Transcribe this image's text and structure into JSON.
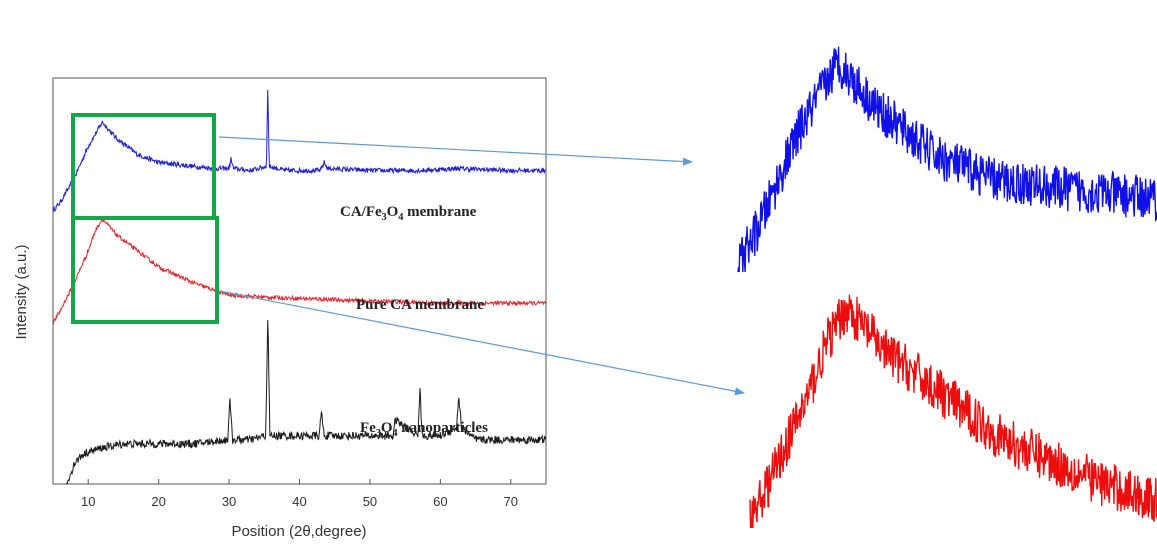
{
  "chart_data": {
    "type": "line",
    "xlabel": "Position (2θ,degree)",
    "ylabel": "Intensity (a.u.)",
    "xlim": [
      5,
      75
    ],
    "x_ticks": [
      10,
      20,
      30,
      40,
      50,
      60,
      70
    ],
    "grid": false,
    "series": [
      {
        "name": "CA/Fe3O4 membrane",
        "label_parts": [
          "CA/Fe",
          "3",
          "O",
          "4",
          " membrane"
        ],
        "color": "#1f1fd6",
        "x": [
          5,
          6,
          8,
          10,
          11,
          12,
          14,
          17,
          20,
          25,
          28,
          30,
          30.3,
          30.6,
          33,
          35.3,
          35.5,
          35.7,
          38,
          43,
          43.5,
          44,
          50,
          57,
          62.5,
          70,
          75
        ],
        "y": [
          0.68,
          0.7,
          0.76,
          0.84,
          0.87,
          0.9,
          0.86,
          0.82,
          0.8,
          0.79,
          0.785,
          0.785,
          0.81,
          0.785,
          0.78,
          0.79,
          0.99,
          0.79,
          0.78,
          0.78,
          0.8,
          0.785,
          0.78,
          0.78,
          0.785,
          0.78,
          0.78
        ]
      },
      {
        "name": "Pure CA membrane",
        "label_parts": [
          "Pure CA membrane"
        ],
        "color": "#e8242a",
        "x": [
          5,
          6,
          8,
          10,
          11,
          12,
          14,
          17,
          20,
          25,
          30,
          35,
          43,
          50,
          60,
          70,
          75
        ],
        "y": [
          0.4,
          0.43,
          0.5,
          0.58,
          0.63,
          0.66,
          0.62,
          0.58,
          0.54,
          0.5,
          0.47,
          0.465,
          0.46,
          0.455,
          0.45,
          0.45,
          0.45
        ]
      },
      {
        "name": "Fe3O4 nanoparticles",
        "label_parts": [
          "Fe",
          "3",
          "O",
          "4",
          " nanoparticles"
        ],
        "color": "#1a1a1a",
        "x": [
          5,
          6,
          7,
          8,
          9,
          10,
          12,
          15,
          20,
          25,
          29.8,
          30.1,
          30.5,
          33,
          35.2,
          35.5,
          35.8,
          38,
          42.8,
          43.1,
          43.5,
          50,
          53.3,
          53.6,
          56.8,
          57.1,
          57.4,
          60,
          62.3,
          62.6,
          63,
          65,
          70,
          75
        ],
        "y": [
          -0.15,
          -0.08,
          0.0,
          0.05,
          0.07,
          0.08,
          0.09,
          0.1,
          0.1,
          0.1,
          0.11,
          0.21,
          0.11,
          0.11,
          0.12,
          0.42,
          0.12,
          0.12,
          0.12,
          0.18,
          0.12,
          0.12,
          0.12,
          0.16,
          0.12,
          0.24,
          0.12,
          0.12,
          0.14,
          0.22,
          0.14,
          0.11,
          0.11,
          0.11
        ]
      }
    ]
  },
  "zoom_callout": {
    "highlight_color": "#12a84a",
    "arrow_color": "#5b9bd5",
    "zoom_range_x": [
      7,
      28
    ],
    "panels": [
      {
        "series": "CA/Fe3O4 membrane",
        "color": "#1010e8"
      },
      {
        "series": "Pure CA membrane",
        "color": "#ee0d0d"
      }
    ]
  }
}
